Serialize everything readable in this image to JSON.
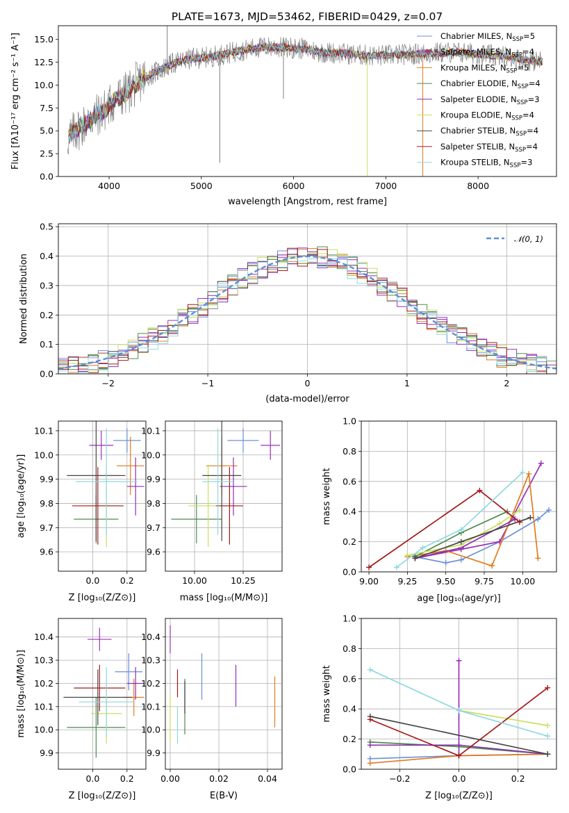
{
  "figure_title": "PLATE=1673, MJD=53462, FIBERID=0429, z=0.07",
  "colors": [
    "#6a8fd8",
    "#9b30b8",
    "#e07b1f",
    "#4e8a4e",
    "#8b2fb0",
    "#c8e05a",
    "#444444",
    "#a31818",
    "#8fd8e0"
  ],
  "chart_data": [
    {
      "type": "line",
      "panel": "spectrum",
      "xlabel": "wavelength [Angstrom, rest frame]",
      "ylabel": "Flux [fλ10⁻¹⁷ erg cm⁻² s⁻¹ A⁻¹]",
      "xlim": [
        3450,
        8850
      ],
      "ylim": [
        0,
        16.5
      ],
      "xticks": [
        "4000",
        "5000",
        "6000",
        "7000",
        "8000"
      ],
      "xtick_values": [
        4000,
        5000,
        6000,
        7000,
        8000
      ],
      "yticks": [
        "0.0",
        "2.5",
        "5.0",
        "7.5",
        "10.0",
        "12.5",
        "15.0"
      ],
      "ytick_values": [
        0,
        2.5,
        5,
        7.5,
        10,
        12.5,
        15
      ],
      "grid": false,
      "legend_position": "right",
      "continuum_x": [
        3550,
        3700,
        3850,
        3950,
        4050,
        4200,
        4350,
        4500,
        4700,
        4900,
        5100,
        5300,
        5500,
        5700,
        5900,
        6100,
        6300,
        6500,
        6700,
        6900,
        7100,
        7300,
        7500,
        7700,
        7900,
        8100,
        8300,
        8500,
        8650
      ],
      "continuum_y": [
        4.2,
        5.5,
        6.6,
        7.2,
        8.3,
        9.2,
        10.6,
        11.4,
        12.4,
        12.9,
        13.1,
        13.5,
        13.9,
        14.2,
        14.1,
        14.0,
        13.6,
        13.5,
        13.3,
        13.2,
        13.3,
        13.4,
        13.5,
        13.6,
        13.5,
        13.3,
        13.1,
        12.8,
        12.6
      ],
      "series": [
        {
          "name": "Chabrier MILES, N_SSP=5"
        },
        {
          "name": "Salpeter MILES, N_SSP=4"
        },
        {
          "name": "Kroupa MILES, N_SSP=5"
        },
        {
          "name": "Chabrier ELODIE, N_SSP=4"
        },
        {
          "name": "Salpeter ELODIE, N_SSP=3"
        },
        {
          "name": "Kroupa ELODIE, N_SSP=4"
        },
        {
          "name": "Chabrier STELIB, N_SSP=4"
        },
        {
          "name": "Salpeter STELIB, N_SSP=4"
        },
        {
          "name": "Kroupa STELIB, N_SSP=3"
        }
      ]
    },
    {
      "type": "histogram",
      "panel": "residuals",
      "xlabel": "(data-model)/error",
      "ylabel": "Normed distribution",
      "xlim": [
        -2.5,
        2.5
      ],
      "ylim": [
        0,
        0.51
      ],
      "xticks": [
        "−2",
        "−1",
        "0",
        "1",
        "2"
      ],
      "xtick_values": [
        -2,
        -1,
        0,
        1,
        2
      ],
      "yticks": [
        "0.0",
        "0.1",
        "0.2",
        "0.3",
        "0.4",
        "0.5"
      ],
      "ytick_values": [
        0,
        0.1,
        0.2,
        0.3,
        0.4,
        0.5
      ],
      "grid": true,
      "legend": "𝒩(0, 1)",
      "legend_position": "top-right",
      "gaussian": {
        "mean": 0,
        "sigma": 1
      }
    },
    {
      "type": "scatter",
      "panel": "age_vs_Z",
      "xlabel": "Z [log₁₀(Z/Z⊙)]",
      "ylabel": "age  [log₁₀(age/yr)]",
      "xlim": [
        -0.2,
        0.31
      ],
      "ylim": [
        9.52,
        10.14
      ],
      "xticks": [
        "0.0",
        "0.2"
      ],
      "xtick_values": [
        0,
        0.2
      ],
      "yticks": [
        "9.6",
        "9.7",
        "9.8",
        "9.9",
        "10.0",
        "10.1"
      ],
      "ytick_values": [
        9.6,
        9.7,
        9.8,
        9.9,
        10.0,
        10.1
      ],
      "grid": true,
      "points": [
        {
          "x": 0.2,
          "y": 10.06,
          "xerr": 0.08,
          "yerr": 0.05
        },
        {
          "x": 0.05,
          "y": 10.04,
          "xerr": 0.07,
          "yerr": 0.06
        },
        {
          "x": 0.22,
          "y": 9.955,
          "xerr": 0.08,
          "yerr": 0.12
        },
        {
          "x": 0.02,
          "y": 9.735,
          "xerr": 0.13,
          "yerr": 0.1
        },
        {
          "x": 0.25,
          "y": 9.87,
          "xerr": 0.05,
          "yerr": 0.12
        },
        {
          "x": 0.08,
          "y": 9.79,
          "xerr": 0.1,
          "yerr": 0.17
        },
        {
          "x": 0.02,
          "y": 9.915,
          "xerr": 0.17,
          "yerr": 0.27
        },
        {
          "x": 0.03,
          "y": 9.79,
          "xerr": 0.15,
          "yerr": 0.16
        },
        {
          "x": 0.08,
          "y": 9.89,
          "xerr": 0.18,
          "yerr": 0.22
        }
      ]
    },
    {
      "type": "scatter",
      "panel": "age_vs_mass",
      "xlabel": "mass [log₁₀(M/M⊙)]",
      "xlim": [
        9.85,
        10.45
      ],
      "ylim": [
        9.52,
        10.14
      ],
      "xticks": [
        "10.00",
        "10.25"
      ],
      "xtick_values": [
        10.0,
        10.25
      ],
      "yticks": [
        "9.6",
        "9.7",
        "9.8",
        "9.9",
        "10.0",
        "10.1"
      ],
      "ytick_values": [
        9.6,
        9.7,
        9.8,
        9.9,
        10.0,
        10.1
      ],
      "grid": true,
      "points": [
        {
          "x": 10.25,
          "y": 10.06,
          "xerr": 0.08,
          "yerr": 0.05
        },
        {
          "x": 10.39,
          "y": 10.04,
          "xerr": 0.05,
          "yerr": 0.06
        },
        {
          "x": 10.14,
          "y": 9.955,
          "xerr": 0.08,
          "yerr": 0.12
        },
        {
          "x": 10.01,
          "y": 9.735,
          "xerr": 0.13,
          "yerr": 0.1
        },
        {
          "x": 10.2,
          "y": 9.87,
          "xerr": 0.07,
          "yerr": 0.12
        },
        {
          "x": 10.07,
          "y": 9.79,
          "xerr": 0.1,
          "yerr": 0.17
        },
        {
          "x": 10.14,
          "y": 9.915,
          "xerr": 0.1,
          "yerr": 0.27
        },
        {
          "x": 10.18,
          "y": 9.79,
          "xerr": 0.07,
          "yerr": 0.16
        },
        {
          "x": 10.12,
          "y": 9.89,
          "xerr": 0.08,
          "yerr": 0.22
        }
      ]
    },
    {
      "type": "line",
      "panel": "massweight_vs_age",
      "xlabel": "age  [log₁₀(age/yr)]",
      "ylabel": "mass weight",
      "xlim": [
        8.95,
        10.22
      ],
      "ylim": [
        0,
        1.0
      ],
      "xticks": [
        "9.00",
        "9.25",
        "9.50",
        "9.75",
        "10.00"
      ],
      "xtick_values": [
        9.0,
        9.25,
        9.5,
        9.75,
        10.0
      ],
      "yticks": [
        "0.0",
        "0.2",
        "0.4",
        "0.6",
        "0.8",
        "1.0"
      ],
      "ytick_values": [
        0,
        0.2,
        0.4,
        0.6,
        0.8,
        1.0
      ],
      "grid": true,
      "series": [
        {
          "x": [
            9.3,
            9.5,
            9.6,
            9.85,
            10.1,
            10.17
          ],
          "y": [
            0.1,
            0.06,
            0.08,
            0.2,
            0.35,
            0.41
          ]
        },
        {
          "x": [
            9.3,
            9.6,
            9.85,
            10.12
          ],
          "y": [
            0.09,
            0.15,
            0.2,
            0.72
          ]
        },
        {
          "x": [
            9.25,
            9.5,
            9.8,
            10.04,
            10.1
          ],
          "y": [
            0.1,
            0.14,
            0.04,
            0.65,
            0.09
          ]
        },
        {
          "x": [
            9.3,
            9.6,
            9.9
          ],
          "y": [
            0.1,
            0.26,
            0.4
          ]
        },
        {
          "x": [
            9.3,
            9.6,
            9.95
          ],
          "y": [
            0.09,
            0.16,
            0.35
          ]
        },
        {
          "x": [
            9.25,
            9.6,
            9.85,
            9.98
          ],
          "y": [
            0.11,
            0.18,
            0.32,
            0.41
          ]
        },
        {
          "x": [
            9.3,
            9.6,
            10.05
          ],
          "y": [
            0.09,
            0.2,
            0.36
          ]
        },
        {
          "x": [
            9.0,
            9.72,
            9.98
          ],
          "y": [
            0.03,
            0.54,
            0.33
          ]
        },
        {
          "x": [
            9.18,
            9.35,
            9.6,
            10.0
          ],
          "y": [
            0.03,
            0.16,
            0.28,
            0.66
          ]
        }
      ]
    },
    {
      "type": "scatter",
      "panel": "mass_vs_Z",
      "xlabel": "Z [log₁₀(Z/Z⊙)]",
      "ylabel": "mass [log₁₀(M/M⊙)]",
      "xlim": [
        -0.2,
        0.31
      ],
      "ylim": [
        9.83,
        10.48
      ],
      "xticks": [
        "0.0",
        "0.2"
      ],
      "xtick_values": [
        0,
        0.2
      ],
      "yticks": [
        "9.9",
        "10.0",
        "10.1",
        "10.2",
        "10.3",
        "10.4"
      ],
      "ytick_values": [
        9.9,
        10.0,
        10.1,
        10.2,
        10.3,
        10.4
      ],
      "grid": true,
      "points": [
        {
          "x": 0.21,
          "y": 10.25,
          "xerr": 0.08,
          "yerr": 0.08
        },
        {
          "x": 0.04,
          "y": 10.39,
          "xerr": 0.07,
          "yerr": 0.05
        },
        {
          "x": 0.24,
          "y": 10.14,
          "xerr": 0.06,
          "yerr": 0.08
        },
        {
          "x": 0.02,
          "y": 10.01,
          "xerr": 0.17,
          "yerr": 0.13
        },
        {
          "x": 0.25,
          "y": 10.2,
          "xerr": 0.05,
          "yerr": 0.07
        },
        {
          "x": 0.08,
          "y": 10.07,
          "xerr": 0.09,
          "yerr": 0.13
        },
        {
          "x": 0.03,
          "y": 10.14,
          "xerr": 0.2,
          "yerr": 0.12
        },
        {
          "x": 0.04,
          "y": 10.18,
          "xerr": 0.15,
          "yerr": 0.1
        },
        {
          "x": 0.08,
          "y": 10.12,
          "xerr": 0.16,
          "yerr": 0.15
        }
      ]
    },
    {
      "type": "scatter",
      "panel": "mass_vs_ebv",
      "xlabel": "E(B-V)",
      "xlim": [
        -0.002,
        0.046
      ],
      "ylim": [
        9.83,
        10.48
      ],
      "xticks": [
        "0.00",
        "0.02",
        "0.04"
      ],
      "xtick_values": [
        0,
        0.02,
        0.04
      ],
      "yticks": [
        "9.9",
        "10.0",
        "10.1",
        "10.2",
        "10.3",
        "10.4"
      ],
      "ytick_values": [
        9.9,
        10.0,
        10.1,
        10.2,
        10.3,
        10.4
      ],
      "grid": true,
      "points": [
        {
          "x": 0.013,
          "y": 10.23,
          "yerr": 0.1
        },
        {
          "x": 0.0,
          "y": 10.39,
          "yerr": 0.06
        },
        {
          "x": 0.043,
          "y": 10.12,
          "yerr": 0.11
        },
        {
          "x": 0.006,
          "y": 10.1,
          "yerr": 0.12
        },
        {
          "x": 0.027,
          "y": 10.19,
          "yerr": 0.09
        },
        {
          "x": 0.0,
          "y": 10.05,
          "yerr": 0.1
        },
        {
          "x": 0.006,
          "y": 10.14,
          "yerr": 0.07
        },
        {
          "x": 0.003,
          "y": 10.2,
          "yerr": 0.06
        },
        {
          "x": 0.003,
          "y": 10.02,
          "yerr": 0.08
        }
      ]
    },
    {
      "type": "line",
      "panel": "massweight_vs_Z",
      "xlabel": "Z [log₁₀(Z/Z⊙)]",
      "ylabel": "mass weight",
      "xlim": [
        -0.33,
        0.33
      ],
      "ylim": [
        0,
        1.0
      ],
      "xticks": [
        "−0.2",
        "0.0",
        "0.2"
      ],
      "xtick_values": [
        -0.2,
        0,
        0.2
      ],
      "yticks": [
        "0.0",
        "0.2",
        "0.4",
        "0.6",
        "0.8",
        "1.0"
      ],
      "ytick_values": [
        0,
        0.2,
        0.4,
        0.6,
        0.8,
        1.0
      ],
      "grid": true,
      "series": [
        {
          "x": [
            -0.3,
            0.0,
            0.3
          ],
          "y": [
            0.07,
            0.09,
            0.1
          ]
        },
        {
          "x": [
            0.0,
            0.0
          ],
          "y": [
            0.09,
            0.72
          ]
        },
        {
          "x": [
            -0.3,
            0.0,
            0.3
          ],
          "y": [
            0.04,
            0.09,
            0.1
          ]
        },
        {
          "x": [
            -0.3,
            0.0,
            0.3
          ],
          "y": [
            0.18,
            0.15,
            0.1
          ]
        },
        {
          "x": [
            -0.3,
            0.0,
            0.3
          ],
          "y": [
            0.16,
            0.16,
            0.1
          ]
        },
        {
          "x": [
            0.0,
            0.3
          ],
          "y": [
            0.39,
            0.29
          ]
        },
        {
          "x": [
            -0.3,
            0.3
          ],
          "y": [
            0.35,
            0.1
          ]
        },
        {
          "x": [
            -0.3,
            0.0,
            0.3
          ],
          "y": [
            0.33,
            0.09,
            0.54
          ]
        },
        {
          "x": [
            -0.3,
            0.0,
            0.3
          ],
          "y": [
            0.66,
            0.39,
            0.22
          ]
        }
      ]
    }
  ]
}
